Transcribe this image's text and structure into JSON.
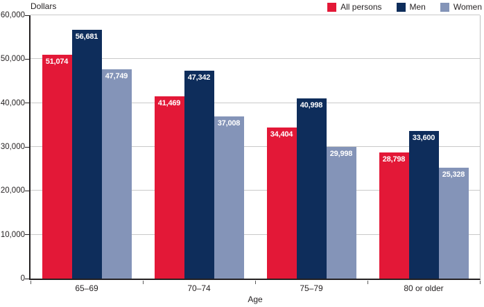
{
  "colors": {
    "all_persons": "#E31837",
    "men": "#0E2D5B",
    "women": "#8494B8",
    "gridline": "#C9C9C9",
    "axis": "#231F20",
    "value_label_text": "#FFFFFF",
    "background": "#FFFFFF"
  },
  "legend": {
    "position": "top-right",
    "items": [
      {
        "label": "All persons",
        "color": "#E31837"
      },
      {
        "label": "Men",
        "color": "#0E2D5B"
      },
      {
        "label": "Women",
        "color": "#8494B8"
      }
    ]
  },
  "chart_data": {
    "type": "bar",
    "title": "",
    "xlabel": "Age",
    "ylabel": "Dollars",
    "categories": [
      "65–69",
      "70–74",
      "75–79",
      "80 or older"
    ],
    "series": [
      {
        "name": "All persons",
        "color": "#E31837",
        "values": [
          51074,
          41469,
          34404,
          28798
        ],
        "value_labels": [
          "51,074",
          "41,469",
          "34,404",
          "28,798"
        ]
      },
      {
        "name": "Men",
        "color": "#0E2D5B",
        "values": [
          56681,
          47342,
          40998,
          33600
        ],
        "value_labels": [
          "56,681",
          "47,342",
          "40,998",
          "33,600"
        ]
      },
      {
        "name": "Women",
        "color": "#8494B8",
        "values": [
          47749,
          37008,
          29998,
          25328
        ],
        "value_labels": [
          "47,749",
          "37,008",
          "29,998",
          "25,328"
        ]
      }
    ],
    "ylim": [
      0,
      60000
    ],
    "yticks": [
      {
        "value": 0,
        "label": "0"
      },
      {
        "value": 10000,
        "label": "10,000"
      },
      {
        "value": 20000,
        "label": "20,000"
      },
      {
        "value": 30000,
        "label": "30,000"
      },
      {
        "value": 40000,
        "label": "40,000"
      },
      {
        "value": 50000,
        "label": "50,000"
      },
      {
        "value": 60000,
        "label": "60,000"
      }
    ],
    "grid": true,
    "legend_position": "top-right",
    "value_label_style": "inside-top-white-bold"
  }
}
